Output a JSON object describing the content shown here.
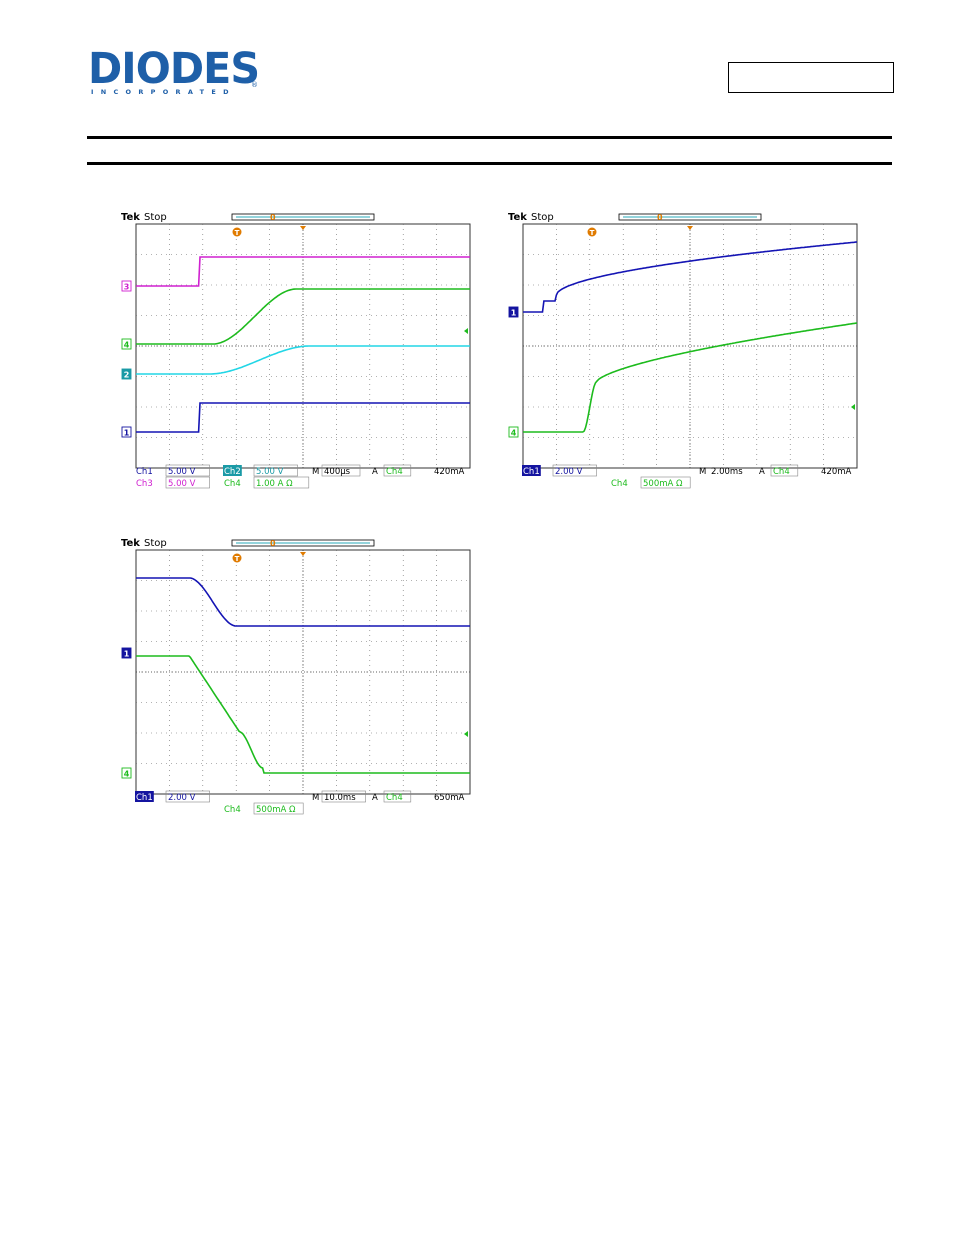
{
  "header": {
    "logo": {
      "name": "DIODES",
      "sub": "INCORPORATED",
      "reg": "®"
    },
    "part_box": ""
  },
  "scopes": [
    {
      "brand": "Tek",
      "state": "Stop",
      "trig_marker": "T",
      "ref_marker": "0",
      "markers": [
        {
          "label": "3",
          "color": "#d020d0",
          "filled": false
        },
        {
          "label": "4",
          "color": "#1dbb1d",
          "filled": false
        },
        {
          "label": "2",
          "color": "#1a9aa6",
          "filled": true
        },
        {
          "label": "1",
          "color": "#1414a0",
          "filled": false
        }
      ],
      "row1": [
        {
          "t": "Ch1",
          "c": "#1414a0",
          "hl": false
        },
        {
          "t": "5.00 V",
          "c": "#1414a0",
          "box": true
        },
        {
          "t": "Ch2",
          "c": "#ffffff",
          "hl": "#1a9aa6"
        },
        {
          "t": "5.00 V",
          "c": "#1a9aa6",
          "box": true
        },
        {
          "t": "M",
          "c": "#000000"
        },
        {
          "t": "400µs",
          "c": "#000000",
          "box": true
        },
        {
          "t": "A",
          "c": "#000000"
        },
        {
          "t": "Ch4",
          "c": "#1dbb1d",
          "box": true
        },
        {
          "t": "420mA",
          "c": "#000000"
        }
      ],
      "row2": [
        {
          "t": "Ch3",
          "c": "#d020d0"
        },
        {
          "t": "5.00 V",
          "c": "#d020d0",
          "box": true
        },
        {
          "t": "Ch4",
          "c": "#1dbb1d"
        },
        {
          "t": "1.00 A Ω",
          "c": "#1dbb1d",
          "box": true
        }
      ],
      "traces": [
        {
          "name": "ch3",
          "color": "#d020d0"
        },
        {
          "name": "ch4",
          "color": "#1dbb1d"
        },
        {
          "name": "ch2",
          "color": "#22d6e6"
        },
        {
          "name": "ch1",
          "color": "#1414b4"
        }
      ]
    },
    {
      "brand": "Tek",
      "state": "Stop",
      "trig_marker": "T",
      "ref_marker": "0",
      "markers": [
        {
          "label": "1",
          "color": "#1414a0",
          "filled": true
        },
        {
          "label": "4",
          "color": "#1dbb1d",
          "filled": false
        }
      ],
      "row1": [
        {
          "t": "Ch1",
          "c": "#ffffff",
          "hl": "#1414a0"
        },
        {
          "t": "2.00 V",
          "c": "#1414a0",
          "box": true
        },
        {
          "t": "M",
          "c": "#000000"
        },
        {
          "t": "2.00ms",
          "c": "#000000"
        },
        {
          "t": "A",
          "c": "#000000"
        },
        {
          "t": "Ch4",
          "c": "#1dbb1d",
          "box": true
        },
        {
          "t": "420mA",
          "c": "#000000"
        }
      ],
      "row2": [
        {
          "t": "Ch4",
          "c": "#1dbb1d"
        },
        {
          "t": "500mA Ω",
          "c": "#1dbb1d",
          "box": true
        }
      ],
      "traces": [
        {
          "name": "ch1",
          "color": "#1414b4"
        },
        {
          "name": "ch4",
          "color": "#1dbb1d"
        }
      ]
    },
    {
      "brand": "Tek",
      "state": "Stop",
      "trig_marker": "T",
      "ref_marker": "0",
      "markers": [
        {
          "label": "1",
          "color": "#1414a0",
          "filled": true
        },
        {
          "label": "4",
          "color": "#1dbb1d",
          "filled": false
        }
      ],
      "row1": [
        {
          "t": "Ch1",
          "c": "#ffffff",
          "hl": "#1414a0"
        },
        {
          "t": "2.00 V",
          "c": "#1414a0",
          "box": true
        },
        {
          "t": "M",
          "c": "#000000"
        },
        {
          "t": "10.0ms",
          "c": "#000000",
          "box": true
        },
        {
          "t": "A",
          "c": "#000000"
        },
        {
          "t": "Ch4",
          "c": "#1dbb1d",
          "box": true
        },
        {
          "t": "650mA",
          "c": "#000000"
        }
      ],
      "row2": [
        {
          "t": "Ch4",
          "c": "#1dbb1d"
        },
        {
          "t": "500mA Ω",
          "c": "#1dbb1d",
          "box": true
        }
      ],
      "traces": [
        {
          "name": "ch1",
          "color": "#1414b4"
        },
        {
          "name": "ch4",
          "color": "#1dbb1d"
        }
      ]
    }
  ]
}
